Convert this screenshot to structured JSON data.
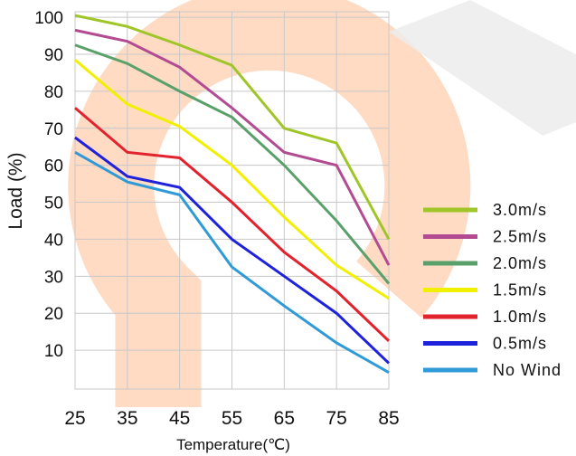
{
  "chart_data": {
    "type": "line",
    "xlabel": "Temperature(℃)",
    "ylabel": "Load (%)",
    "title": "",
    "x": [
      25,
      35,
      45,
      55,
      65,
      75,
      85
    ],
    "x_tick_labels": [
      "25",
      "35",
      "45",
      "55",
      "65",
      "75",
      "85"
    ],
    "y_tick_labels": [
      "10",
      "20",
      "30",
      "40",
      "50",
      "60",
      "70",
      "80",
      "90",
      "100"
    ],
    "xlim": [
      25,
      85
    ],
    "ylim": [
      0,
      101
    ],
    "grid": true,
    "legend_position": "right",
    "series": [
      {
        "name": "3.0m/s",
        "color": "#9fc528",
        "values": [
          100.5,
          97.5,
          92.5,
          87,
          70,
          66,
          40
        ]
      },
      {
        "name": "2.5m/s",
        "color": "#b34b93",
        "values": [
          96.5,
          93.5,
          86.5,
          75.5,
          63.5,
          60,
          33
        ]
      },
      {
        "name": "2.0m/s",
        "color": "#5aa06a",
        "values": [
          92.5,
          87.5,
          80,
          73,
          60,
          45,
          28
        ]
      },
      {
        "name": "1.5m/s",
        "color": "#f0f000",
        "values": [
          88.5,
          76.5,
          70.5,
          60,
          46,
          33,
          24
        ]
      },
      {
        "name": "1.0m/s",
        "color": "#e2232e",
        "values": [
          75.5,
          63.5,
          62,
          50,
          36.5,
          26,
          12.5
        ]
      },
      {
        "name": "0.5m/s",
        "color": "#1f22dc",
        "values": [
          67.5,
          57,
          54,
          40,
          30,
          20,
          6.5
        ]
      },
      {
        "name": "No Wind",
        "color": "#2f9ad8",
        "values": [
          63.5,
          55.5,
          52,
          32.5,
          22,
          12,
          4
        ]
      }
    ]
  }
}
